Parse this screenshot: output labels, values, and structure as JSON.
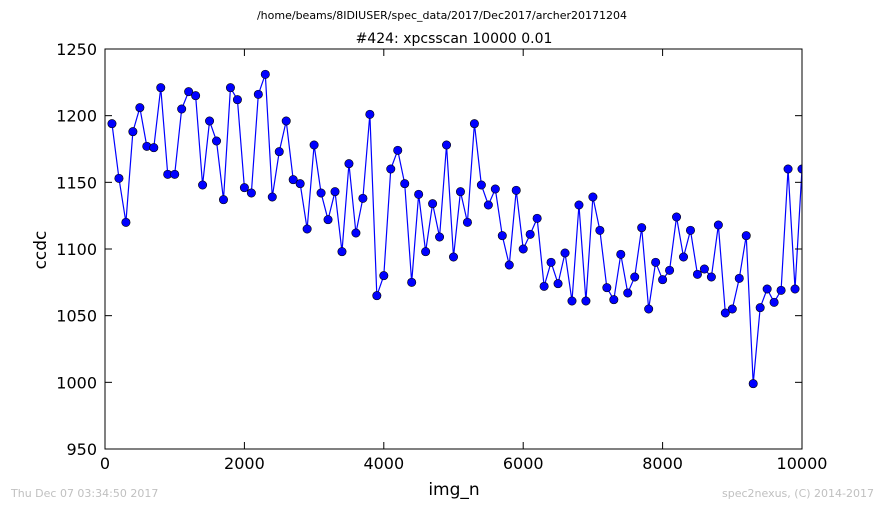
{
  "figure": {
    "suptitle": "/home/beams/8IDIUSER/spec_data/2017/Dec2017/archer20171204",
    "footer_left": "Thu Dec 07 03:34:50 2017",
    "footer_right": "spec2nexus, (C) 2014-2017"
  },
  "colors": {
    "series": "#0000ff",
    "background": "#ffffff",
    "axes": "#000000",
    "footer": "#c0c0c0"
  },
  "chart_data": {
    "type": "line",
    "title": "#424: xpcsscan 10000 0.01",
    "xlabel": "img_n",
    "ylabel": "ccdc",
    "xlim": [
      0,
      10000
    ],
    "ylim": [
      950,
      1250
    ],
    "xticks": [
      0,
      2000,
      4000,
      6000,
      8000,
      10000
    ],
    "yticks": [
      950,
      1000,
      1050,
      1100,
      1150,
      1200,
      1250
    ],
    "grid": false,
    "markers": "circle",
    "x": [
      100,
      200,
      300,
      400,
      500,
      600,
      700,
      800,
      900,
      1000,
      1100,
      1200,
      1300,
      1400,
      1500,
      1600,
      1700,
      1800,
      1900,
      2000,
      2100,
      2200,
      2300,
      2400,
      2500,
      2600,
      2700,
      2800,
      2900,
      3000,
      3100,
      3200,
      3300,
      3400,
      3500,
      3600,
      3700,
      3800,
      3900,
      4000,
      4100,
      4200,
      4300,
      4400,
      4500,
      4600,
      4700,
      4800,
      4900,
      5000,
      5100,
      5200,
      5300,
      5400,
      5500,
      5600,
      5700,
      5800,
      5900,
      6000,
      6100,
      6200,
      6300,
      6400,
      6500,
      6600,
      6700,
      6800,
      6900,
      7000,
      7100,
      7200,
      7300,
      7400,
      7500,
      7600,
      7700,
      7800,
      7900,
      8000,
      8100,
      8200,
      8300,
      8400,
      8500,
      8600,
      8700,
      8800,
      8900,
      9000,
      9100,
      9200,
      9300,
      9400,
      9500,
      9600,
      9700,
      9800,
      9900,
      10000
    ],
    "y": [
      1194,
      1153,
      1120,
      1188,
      1206,
      1177,
      1176,
      1221,
      1156,
      1156,
      1205,
      1218,
      1215,
      1148,
      1196,
      1181,
      1137,
      1221,
      1212,
      1146,
      1142,
      1216,
      1231,
      1139,
      1173,
      1196,
      1152,
      1149,
      1115,
      1178,
      1142,
      1122,
      1143,
      1098,
      1164,
      1112,
      1138,
      1201,
      1065,
      1080,
      1160,
      1174,
      1149,
      1075,
      1141,
      1098,
      1134,
      1109,
      1178,
      1094,
      1143,
      1120,
      1194,
      1148,
      1133,
      1145,
      1110,
      1088,
      1144,
      1100,
      1111,
      1123,
      1072,
      1090,
      1074,
      1097,
      1061,
      1133,
      1061,
      1139,
      1114,
      1071,
      1062,
      1096,
      1067,
      1079,
      1116,
      1055,
      1090,
      1077,
      1084,
      1124,
      1094,
      1114,
      1081,
      1085,
      1079,
      1118,
      1052,
      1055,
      1078,
      1110,
      999,
      1056,
      1070,
      1060,
      1069,
      1160,
      1070,
      1160
    ]
  }
}
